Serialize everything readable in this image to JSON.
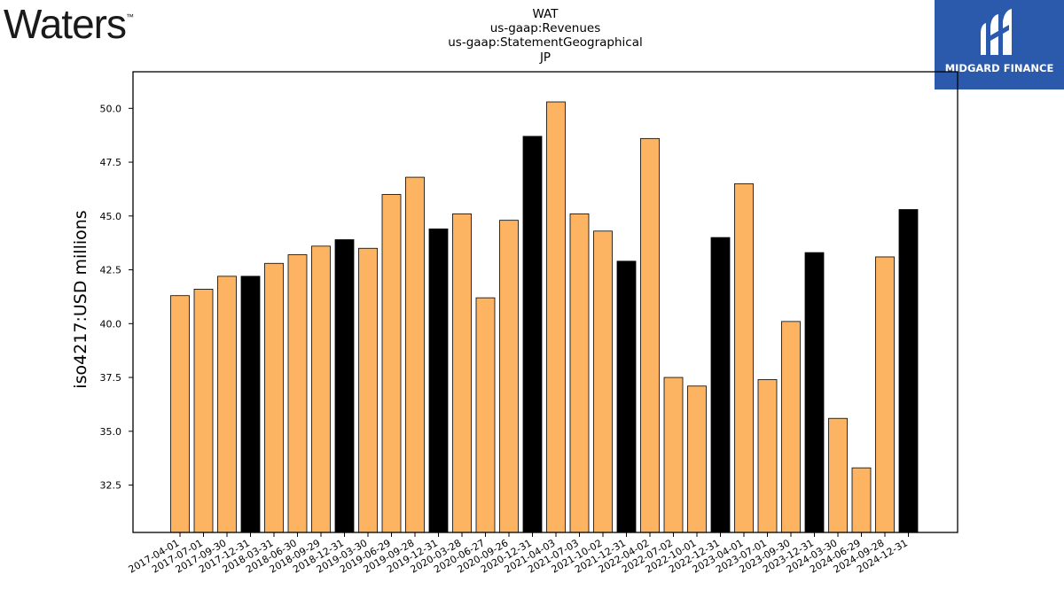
{
  "logos": {
    "left": {
      "text": "Waters",
      "mark": "™"
    },
    "right": {
      "text": "MIDGARD FINANCE",
      "icon": "midgard-logo-icon"
    }
  },
  "colors": {
    "regular": "#fdb462",
    "year_end": "#000000",
    "edge": "#000000"
  },
  "chart_data": {
    "type": "bar",
    "title": [
      "WAT",
      "us-gaap:Revenues",
      "us-gaap:StatementGeographical",
      "JP"
    ],
    "xlabel": "",
    "ylabel": "iso4217:USD  millions",
    "ylim": [
      30.3,
      51.7
    ],
    "yticks": [
      32.5,
      35.0,
      37.5,
      40.0,
      42.5,
      45.0,
      47.5,
      50.0
    ],
    "grid": false,
    "categories": [
      "2017-04-01",
      "2017-07-01",
      "2017-09-30",
      "2017-12-31",
      "2018-03-31",
      "2018-06-30",
      "2018-09-29",
      "2018-12-31",
      "2019-03-30",
      "2019-06-29",
      "2019-09-28",
      "2019-12-31",
      "2020-03-28",
      "2020-06-27",
      "2020-09-26",
      "2020-12-31",
      "2021-04-03",
      "2021-07-03",
      "2021-10-02",
      "2021-12-31",
      "2022-04-02",
      "2022-07-02",
      "2022-10-01",
      "2022-12-31",
      "2023-04-01",
      "2023-07-01",
      "2023-09-30",
      "2023-12-31",
      "2024-03-30",
      "2024-06-29",
      "2024-09-28",
      "2024-12-31"
    ],
    "values": [
      41.3,
      41.6,
      42.2,
      42.2,
      42.8,
      43.2,
      43.6,
      43.9,
      43.5,
      46.0,
      46.8,
      44.4,
      45.1,
      41.2,
      44.8,
      48.7,
      50.3,
      45.1,
      44.3,
      42.9,
      48.6,
      37.5,
      37.1,
      44.0,
      46.5,
      37.4,
      40.1,
      43.3,
      35.6,
      33.3,
      43.1,
      45.3
    ],
    "year_end": [
      false,
      false,
      false,
      true,
      false,
      false,
      false,
      true,
      false,
      false,
      false,
      true,
      false,
      false,
      false,
      true,
      false,
      false,
      false,
      true,
      false,
      false,
      false,
      true,
      false,
      false,
      false,
      true,
      false,
      false,
      false,
      true
    ]
  }
}
